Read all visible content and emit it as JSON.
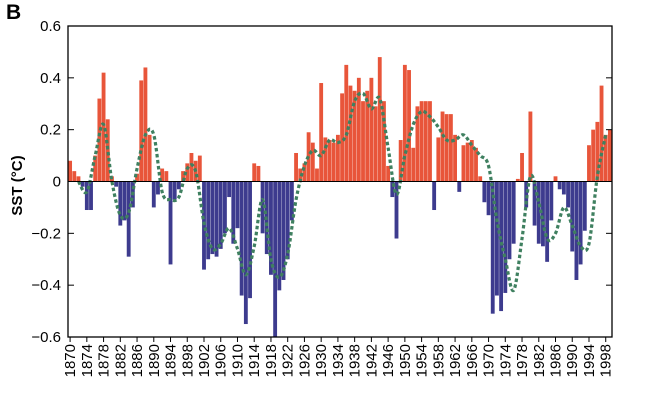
{
  "panel_label": "B",
  "chart_data": {
    "type": "bar",
    "title": "",
    "xlabel": "",
    "ylabel": "SST (°C)",
    "ylim": [
      -0.6,
      0.6
    ],
    "yticks": [
      -0.6,
      -0.4,
      -0.2,
      0,
      0.2,
      0.4,
      0.6
    ],
    "ytick_labels": [
      "−0.6",
      "−0.4",
      "−0.2",
      "0",
      "0.2",
      "0.4",
      "0.6"
    ],
    "xlim": [
      1869.5,
      1999.5
    ],
    "xticks": [
      1870,
      1874,
      1878,
      1882,
      1886,
      1890,
      1894,
      1898,
      1902,
      1906,
      1910,
      1914,
      1918,
      1922,
      1926,
      1930,
      1934,
      1938,
      1942,
      1946,
      1950,
      1954,
      1958,
      1962,
      1966,
      1970,
      1974,
      1978,
      1982,
      1986,
      1990,
      1994,
      1998
    ],
    "grid": false,
    "colors": {
      "positive": "#e8553a",
      "negative": "#3d3b8e",
      "smooth": "#3f8060",
      "axis": "#000000"
    },
    "series": [
      {
        "type": "bar",
        "x": [
          1870,
          1871,
          1872,
          1873,
          1874,
          1875,
          1876,
          1877,
          1878,
          1879,
          1880,
          1881,
          1882,
          1883,
          1884,
          1885,
          1886,
          1887,
          1888,
          1889,
          1890,
          1891,
          1892,
          1893,
          1894,
          1895,
          1896,
          1897,
          1898,
          1899,
          1900,
          1901,
          1902,
          1903,
          1904,
          1905,
          1906,
          1907,
          1908,
          1909,
          1910,
          1911,
          1912,
          1913,
          1914,
          1915,
          1916,
          1917,
          1918,
          1919,
          1920,
          1921,
          1922,
          1923,
          1924,
          1925,
          1926,
          1927,
          1928,
          1929,
          1930,
          1931,
          1932,
          1933,
          1934,
          1935,
          1936,
          1937,
          1938,
          1939,
          1940,
          1941,
          1942,
          1943,
          1944,
          1945,
          1946,
          1947,
          1948,
          1949,
          1950,
          1951,
          1952,
          1953,
          1954,
          1955,
          1956,
          1957,
          1958,
          1959,
          1960,
          1961,
          1962,
          1963,
          1964,
          1965,
          1966,
          1967,
          1968,
          1969,
          1970,
          1971,
          1972,
          1973,
          1974,
          1975,
          1976,
          1977,
          1978,
          1979,
          1980,
          1981,
          1982,
          1983,
          1984,
          1985,
          1986,
          1987,
          1988,
          1989,
          1990,
          1991,
          1992,
          1993,
          1994,
          1995,
          1996,
          1997,
          1998,
          1999
        ],
        "values": [
          0.08,
          0.04,
          0.02,
          -0.02,
          -0.11,
          -0.11,
          0.1,
          0.32,
          0.42,
          0.24,
          0.02,
          -0.02,
          -0.17,
          -0.15,
          -0.29,
          -0.1,
          0.03,
          0.39,
          0.44,
          0.18,
          -0.1,
          -0.05,
          0.05,
          0.04,
          -0.32,
          -0.07,
          -0.03,
          0.04,
          0.07,
          0.11,
          0.08,
          0.1,
          -0.34,
          -0.3,
          -0.28,
          -0.29,
          -0.26,
          -0.2,
          -0.06,
          -0.24,
          -0.18,
          -0.44,
          -0.55,
          -0.45,
          0.07,
          0.06,
          -0.2,
          -0.28,
          -0.36,
          -0.6,
          -0.42,
          -0.38,
          -0.3,
          -0.15,
          0.11,
          0.05,
          0.07,
          0.19,
          0.15,
          0.05,
          0.38,
          0.17,
          0.16,
          0.15,
          0.18,
          0.34,
          0.45,
          0.37,
          0.35,
          0.4,
          0.31,
          0.35,
          0.4,
          0.29,
          0.48,
          0.31,
          0.06,
          -0.06,
          -0.22,
          0.16,
          0.45,
          0.43,
          0.13,
          0.29,
          0.31,
          0.31,
          0.31,
          -0.11,
          0.17,
          0.27,
          0.26,
          0.26,
          0.18,
          -0.04,
          0.14,
          0.15,
          0.16,
          0.13,
          0.02,
          -0.08,
          -0.13,
          -0.51,
          -0.44,
          -0.5,
          -0.43,
          -0.3,
          -0.24,
          0.01,
          0.11,
          -0.1,
          0.27,
          -0.17,
          -0.24,
          -0.25,
          -0.31,
          -0.15,
          0.02,
          -0.03,
          -0.05,
          -0.1,
          -0.27,
          -0.38,
          -0.32,
          -0.19,
          0.14,
          0.2,
          0.23,
          0.37,
          0.18,
          0.2
        ]
      },
      {
        "type": "line",
        "style": "dotted",
        "x": [
          1872,
          1874,
          1876,
          1878,
          1880,
          1882,
          1884,
          1886,
          1888,
          1890,
          1892,
          1894,
          1896,
          1898,
          1900,
          1902,
          1904,
          1906,
          1908,
          1910,
          1912,
          1914,
          1916,
          1918,
          1920,
          1922,
          1924,
          1926,
          1928,
          1930,
          1932,
          1934,
          1936,
          1938,
          1940,
          1942,
          1944,
          1946,
          1948,
          1950,
          1952,
          1954,
          1956,
          1958,
          1960,
          1962,
          1964,
          1966,
          1968,
          1970,
          1972,
          1974,
          1976,
          1978,
          1980,
          1982,
          1984,
          1986,
          1988,
          1990,
          1992,
          1994,
          1996,
          1998
        ],
        "values": [
          0.0,
          -0.04,
          0.1,
          0.22,
          0.0,
          -0.13,
          -0.12,
          0.05,
          0.18,
          0.18,
          -0.04,
          -0.07,
          -0.06,
          0.05,
          0.04,
          -0.16,
          -0.26,
          -0.24,
          -0.18,
          -0.26,
          -0.36,
          -0.25,
          -0.07,
          -0.3,
          -0.37,
          -0.28,
          -0.07,
          0.06,
          0.12,
          0.1,
          0.16,
          0.15,
          0.18,
          0.31,
          0.34,
          0.28,
          0.32,
          0.13,
          -0.05,
          0.1,
          0.22,
          0.27,
          0.25,
          0.21,
          0.16,
          0.16,
          0.18,
          0.14,
          0.1,
          0.06,
          -0.15,
          -0.3,
          -0.42,
          -0.22,
          0.02,
          -0.08,
          -0.22,
          -0.2,
          -0.1,
          -0.17,
          -0.25,
          -0.24,
          0.02,
          0.18
        ]
      }
    ]
  }
}
